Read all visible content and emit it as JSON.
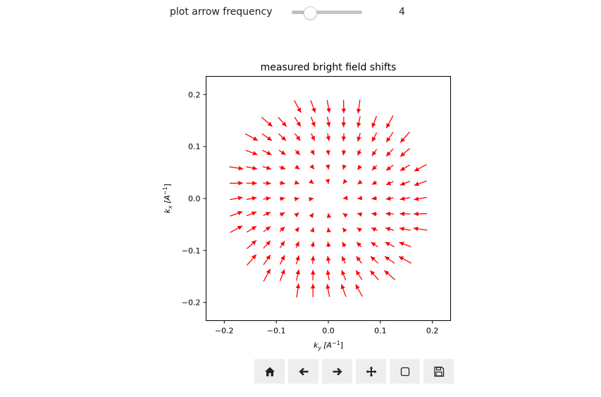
{
  "slider": {
    "label": "plot arrow frequency",
    "value": "4",
    "position_fraction": 0.2
  },
  "chart_data": {
    "type": "quiver",
    "title": "measured bright field shifts",
    "xlabel_main": "k",
    "xlabel_sub": "y",
    "xlabel_unit": "[A",
    "ylabel_main": "k",
    "ylabel_sub": "x",
    "ylabel_unit": "[A",
    "unit_exp": "−1",
    "xlim": [
      -0.235,
      0.235
    ],
    "ylim": [
      -0.235,
      0.235
    ],
    "x_ticks": [
      -0.2,
      -0.1,
      0.0,
      0.1,
      0.2
    ],
    "y_ticks": [
      -0.2,
      -0.1,
      0.0,
      0.1,
      0.2
    ],
    "x_tick_labels": [
      "−0.2",
      "−0.1",
      "0.0",
      "0.1",
      "0.2"
    ],
    "y_tick_labels": [
      "−0.2",
      "−0.1",
      "0.0",
      "0.1",
      "0.2"
    ],
    "grid_spacing": 0.0295,
    "radius": 0.19,
    "shift_scale": 0.0275,
    "arrow_color": "#ff0000"
  },
  "toolbar": {
    "buttons": [
      {
        "name": "home-button",
        "icon": "home-icon",
        "tooltip": "Reset original view"
      },
      {
        "name": "back-button",
        "icon": "arrow-left-icon",
        "tooltip": "Back to previous view"
      },
      {
        "name": "forward-button",
        "icon": "arrow-right-icon",
        "tooltip": "Forward to next view"
      },
      {
        "name": "pan-button",
        "icon": "move-icon",
        "tooltip": "Pan axes"
      },
      {
        "name": "zoom-button",
        "icon": "zoom-rect-icon",
        "tooltip": "Zoom to rectangle"
      },
      {
        "name": "save-button",
        "icon": "floppy-disk-icon",
        "tooltip": "Download plot"
      }
    ]
  }
}
